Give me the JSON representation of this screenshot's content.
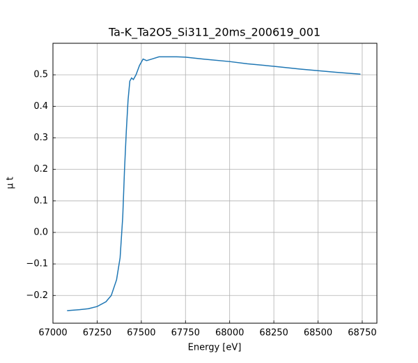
{
  "chart_data": {
    "type": "line",
    "title": "Ta-K_Ta2O5_Si311_20ms_200619_001",
    "xlabel": "Energy [eV]",
    "ylabel": "μ t",
    "color": "#1f77b4",
    "grid": true,
    "x": [
      67080,
      67150,
      67200,
      67250,
      67300,
      67330,
      67360,
      67380,
      67395,
      67405,
      67415,
      67425,
      67435,
      67445,
      67455,
      67470,
      67490,
      67510,
      67530,
      67560,
      67600,
      67700,
      67750,
      67850,
      68000,
      68100,
      68250,
      68400,
      68500,
      68600,
      68740
    ],
    "values": [
      -0.248,
      -0.245,
      -0.242,
      -0.235,
      -0.22,
      -0.2,
      -0.15,
      -0.08,
      0.05,
      0.2,
      0.32,
      0.42,
      0.48,
      0.49,
      0.485,
      0.5,
      0.53,
      0.55,
      0.545,
      0.55,
      0.557,
      0.557,
      0.556,
      0.55,
      0.542,
      0.535,
      0.527,
      0.518,
      0.513,
      0.508,
      0.502
    ],
    "xlim": [
      67000,
      68833
    ],
    "ylim": [
      -0.288,
      0.6
    ],
    "xticks": [
      67000,
      67250,
      67500,
      67750,
      68000,
      68250,
      68500,
      68750
    ],
    "yticks": [
      {
        "value": -0.2,
        "label": "−0.2"
      },
      {
        "value": -0.1,
        "label": "−0.1"
      },
      {
        "value": 0,
        "label": "0.0"
      },
      0.1,
      0.2,
      0.3,
      0.4,
      0.5
    ]
  }
}
